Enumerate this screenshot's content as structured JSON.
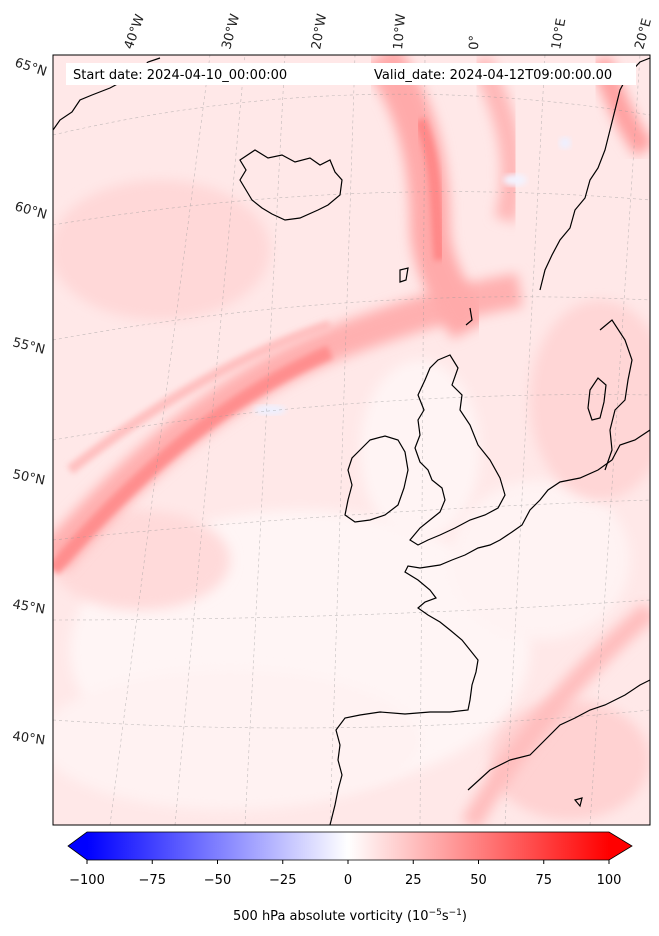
{
  "header": {
    "start_date": "Start date: 2024-04-10_00:00:00",
    "valid_date": "Valid_date: 2024-04-12T09:00:00.00"
  },
  "longitude_labels": [
    "40°W",
    "30°W",
    "20°W",
    "10°W",
    "0°",
    "10°E",
    "20°E"
  ],
  "latitude_labels": [
    "65°N",
    "60°N",
    "55°N",
    "50°N",
    "45°N",
    "40°N"
  ],
  "colorbar": {
    "ticks": [
      "−100",
      "−75",
      "−50",
      "−25",
      "0",
      "25",
      "50",
      "75",
      "100"
    ],
    "range": [
      -100,
      100
    ],
    "label_main": "500 hPa absolute vorticity (10",
    "label_sup1": "−5",
    "label_mid": "s",
    "label_sup2": "−1",
    "label_end": ")",
    "colors": {
      "low": "#0000ff",
      "mid": "#ffffff",
      "high": "#ff0000"
    }
  },
  "map": {
    "coastline_color": "#000000",
    "field_colors": {
      "weak": "#ffeaea",
      "moderate": "#ffc4c4",
      "strong": "#ff9a9a"
    }
  }
}
